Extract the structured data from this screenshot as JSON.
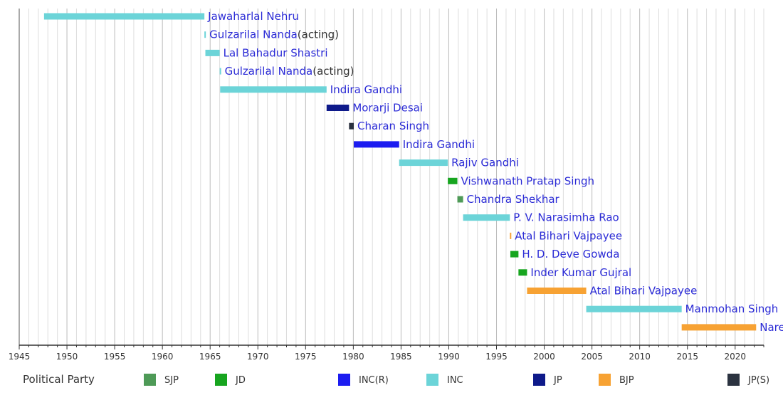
{
  "chart_data": {
    "type": "bar",
    "orientation": "horizontal-timeline",
    "xlim": [
      1945,
      2023
    ],
    "x_ticks": [
      1945,
      1950,
      1955,
      1960,
      1965,
      1970,
      1975,
      1980,
      1985,
      1990,
      1995,
      2000,
      2005,
      2010,
      2015,
      2020
    ],
    "grid": true,
    "legend_placement": "bottom",
    "legend_title": "Political Party",
    "parties": [
      {
        "key": "SJP",
        "color": "#4e9a57"
      },
      {
        "key": "JD",
        "color": "#17a51f"
      },
      {
        "key": "INC(R)",
        "color": "#1c1cf0"
      },
      {
        "key": "INC",
        "color": "#6cd4d8"
      },
      {
        "key": "JP",
        "color": "#0e1a8a"
      },
      {
        "key": "BJP",
        "color": "#f7a233"
      },
      {
        "key": "JP(S)",
        "color": "#2b3340"
      }
    ],
    "terms": [
      {
        "name": "Jawaharlal Nehru",
        "note": "",
        "start": 1947.6,
        "end": 1964.4,
        "party": "INC"
      },
      {
        "name": "Gulzarilal Nanda",
        "note": "(acting)",
        "start": 1964.4,
        "end": 1964.5,
        "party": "INC"
      },
      {
        "name": "Lal Bahadur Shastri",
        "note": "",
        "start": 1964.5,
        "end": 1966.0,
        "party": "INC"
      },
      {
        "name": "Gulzarilal Nanda",
        "note": "(acting)",
        "start": 1966.0,
        "end": 1966.05,
        "party": "INC"
      },
      {
        "name": "Indira Gandhi",
        "note": "",
        "start": 1966.05,
        "end": 1977.2,
        "party": "INC"
      },
      {
        "name": "Morarji Desai",
        "note": "",
        "start": 1977.2,
        "end": 1979.55,
        "party": "JP"
      },
      {
        "name": "Charan Singh",
        "note": "",
        "start": 1979.55,
        "end": 1980.05,
        "party": "JP(S)"
      },
      {
        "name": "Indira Gandhi",
        "note": "",
        "start": 1980.05,
        "end": 1984.8,
        "party": "INC(R)"
      },
      {
        "name": "Rajiv Gandhi",
        "note": "",
        "start": 1984.8,
        "end": 1989.9,
        "party": "INC"
      },
      {
        "name": "Vishwanath Pratap Singh",
        "note": "",
        "start": 1989.9,
        "end": 1990.9,
        "party": "JD"
      },
      {
        "name": "Chandra Shekhar",
        "note": "",
        "start": 1990.9,
        "end": 1991.5,
        "party": "SJP"
      },
      {
        "name": "P. V. Narasimha Rao",
        "note": "",
        "start": 1991.5,
        "end": 1996.4,
        "party": "INC"
      },
      {
        "name": "Atal Bihari Vajpayee",
        "note": "",
        "start": 1996.4,
        "end": 1996.45,
        "party": "BJP"
      },
      {
        "name": "H. D. Deve Gowda",
        "note": "",
        "start": 1996.45,
        "end": 1997.3,
        "party": "JD"
      },
      {
        "name": "Inder Kumar Gujral",
        "note": "",
        "start": 1997.3,
        "end": 1998.2,
        "party": "JD"
      },
      {
        "name": "Atal Bihari Vajpayee",
        "note": "",
        "start": 1998.2,
        "end": 2004.4,
        "party": "BJP"
      },
      {
        "name": "Manmohan Singh",
        "note": "",
        "start": 2004.4,
        "end": 2014.4,
        "party": "INC"
      },
      {
        "name": "Narendra Modi",
        "note": "",
        "start": 2014.4,
        "end": 2022.2,
        "party": "BJP"
      }
    ]
  }
}
